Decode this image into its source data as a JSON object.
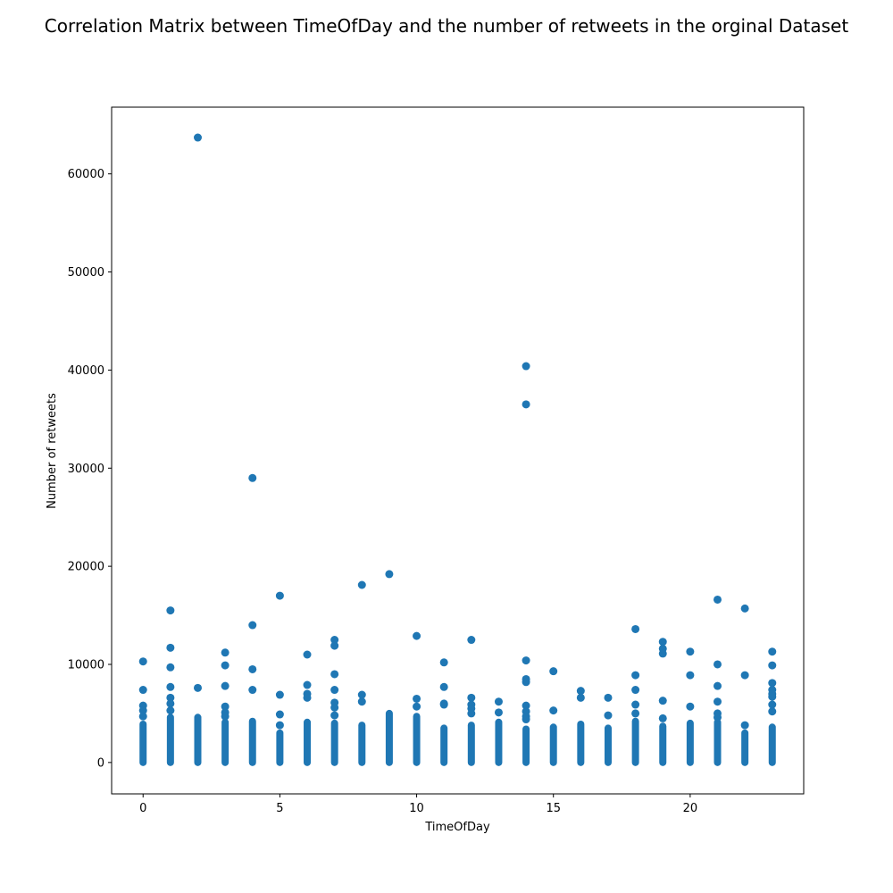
{
  "chart_data": {
    "type": "scatter",
    "title": "Correlation Matrix between TimeOfDay and the number of retweets in the orginal Dataset",
    "xlabel": "TimeOfDay",
    "ylabel": "Number of retweets",
    "xlim": [
      -1.15,
      24.15
    ],
    "ylim": [
      -3200,
      66800
    ],
    "xticks": [
      0,
      5,
      10,
      15,
      20
    ],
    "yticks": [
      0,
      10000,
      20000,
      30000,
      40000,
      50000,
      60000
    ],
    "grid": false,
    "legend": "none",
    "marker_color": "#1f77b4",
    "columns_dense_max": [
      {
        "x": 0,
        "dense_max": 3900
      },
      {
        "x": 1,
        "dense_max": 4600
      },
      {
        "x": 2,
        "dense_max": 4600
      },
      {
        "x": 3,
        "dense_max": 4100
      },
      {
        "x": 4,
        "dense_max": 4200
      },
      {
        "x": 5,
        "dense_max": 3000
      },
      {
        "x": 6,
        "dense_max": 4100
      },
      {
        "x": 7,
        "dense_max": 4000
      },
      {
        "x": 8,
        "dense_max": 3800
      },
      {
        "x": 9,
        "dense_max": 5000
      },
      {
        "x": 10,
        "dense_max": 4700
      },
      {
        "x": 11,
        "dense_max": 3500
      },
      {
        "x": 12,
        "dense_max": 3800
      },
      {
        "x": 13,
        "dense_max": 4100
      },
      {
        "x": 14,
        "dense_max": 3400
      },
      {
        "x": 15,
        "dense_max": 3600
      },
      {
        "x": 16,
        "dense_max": 3900
      },
      {
        "x": 17,
        "dense_max": 3500
      },
      {
        "x": 18,
        "dense_max": 4200
      },
      {
        "x": 19,
        "dense_max": 3700
      },
      {
        "x": 20,
        "dense_max": 4000
      },
      {
        "x": 21,
        "dense_max": 4100
      },
      {
        "x": 22,
        "dense_max": 3000
      },
      {
        "x": 23,
        "dense_max": 3600
      }
    ],
    "points": [
      {
        "x": 0,
        "y": 10300
      },
      {
        "x": 0,
        "y": 7400
      },
      {
        "x": 0,
        "y": 5800
      },
      {
        "x": 0,
        "y": 5300
      },
      {
        "x": 0,
        "y": 4700
      },
      {
        "x": 1,
        "y": 15500
      },
      {
        "x": 1,
        "y": 11700
      },
      {
        "x": 1,
        "y": 9700
      },
      {
        "x": 1,
        "y": 7700
      },
      {
        "x": 1,
        "y": 6600
      },
      {
        "x": 1,
        "y": 6000
      },
      {
        "x": 1,
        "y": 5300
      },
      {
        "x": 2,
        "y": 63700
      },
      {
        "x": 2,
        "y": 7600
      },
      {
        "x": 3,
        "y": 11200
      },
      {
        "x": 3,
        "y": 9900
      },
      {
        "x": 3,
        "y": 7800
      },
      {
        "x": 3,
        "y": 5700
      },
      {
        "x": 3,
        "y": 5100
      },
      {
        "x": 3,
        "y": 4700
      },
      {
        "x": 4,
        "y": 29000
      },
      {
        "x": 4,
        "y": 14000
      },
      {
        "x": 4,
        "y": 9500
      },
      {
        "x": 4,
        "y": 7400
      },
      {
        "x": 5,
        "y": 17000
      },
      {
        "x": 5,
        "y": 6900
      },
      {
        "x": 5,
        "y": 4900
      },
      {
        "x": 5,
        "y": 3800
      },
      {
        "x": 6,
        "y": 11000
      },
      {
        "x": 6,
        "y": 7900
      },
      {
        "x": 6,
        "y": 7000
      },
      {
        "x": 6,
        "y": 6600
      },
      {
        "x": 7,
        "y": 12500
      },
      {
        "x": 7,
        "y": 11900
      },
      {
        "x": 7,
        "y": 9000
      },
      {
        "x": 7,
        "y": 7400
      },
      {
        "x": 7,
        "y": 6100
      },
      {
        "x": 7,
        "y": 5600
      },
      {
        "x": 7,
        "y": 4800
      },
      {
        "x": 8,
        "y": 18100
      },
      {
        "x": 8,
        "y": 6900
      },
      {
        "x": 8,
        "y": 6200
      },
      {
        "x": 9,
        "y": 19200
      },
      {
        "x": 10,
        "y": 12900
      },
      {
        "x": 10,
        "y": 6500
      },
      {
        "x": 10,
        "y": 5700
      },
      {
        "x": 11,
        "y": 10200
      },
      {
        "x": 11,
        "y": 7700
      },
      {
        "x": 11,
        "y": 6000
      },
      {
        "x": 11,
        "y": 5900
      },
      {
        "x": 12,
        "y": 12500
      },
      {
        "x": 12,
        "y": 6600
      },
      {
        "x": 12,
        "y": 5900
      },
      {
        "x": 12,
        "y": 5500
      },
      {
        "x": 12,
        "y": 5000
      },
      {
        "x": 13,
        "y": 6200
      },
      {
        "x": 13,
        "y": 5100
      },
      {
        "x": 14,
        "y": 40400
      },
      {
        "x": 14,
        "y": 36500
      },
      {
        "x": 14,
        "y": 10400
      },
      {
        "x": 14,
        "y": 8500
      },
      {
        "x": 14,
        "y": 8200
      },
      {
        "x": 14,
        "y": 5800
      },
      {
        "x": 14,
        "y": 5200
      },
      {
        "x": 14,
        "y": 4700
      },
      {
        "x": 14,
        "y": 4400
      },
      {
        "x": 15,
        "y": 9300
      },
      {
        "x": 15,
        "y": 5300
      },
      {
        "x": 16,
        "y": 7300
      },
      {
        "x": 16,
        "y": 6600
      },
      {
        "x": 17,
        "y": 6600
      },
      {
        "x": 17,
        "y": 4800
      },
      {
        "x": 18,
        "y": 13600
      },
      {
        "x": 18,
        "y": 8900
      },
      {
        "x": 18,
        "y": 7400
      },
      {
        "x": 18,
        "y": 5900
      },
      {
        "x": 18,
        "y": 5000
      },
      {
        "x": 19,
        "y": 12300
      },
      {
        "x": 19,
        "y": 11600
      },
      {
        "x": 19,
        "y": 11100
      },
      {
        "x": 19,
        "y": 6300
      },
      {
        "x": 19,
        "y": 4500
      },
      {
        "x": 20,
        "y": 11300
      },
      {
        "x": 20,
        "y": 8900
      },
      {
        "x": 20,
        "y": 5700
      },
      {
        "x": 21,
        "y": 16600
      },
      {
        "x": 21,
        "y": 10000
      },
      {
        "x": 21,
        "y": 7800
      },
      {
        "x": 21,
        "y": 6200
      },
      {
        "x": 21,
        "y": 5000
      },
      {
        "x": 21,
        "y": 4600
      },
      {
        "x": 22,
        "y": 15700
      },
      {
        "x": 22,
        "y": 8900
      },
      {
        "x": 22,
        "y": 3800
      },
      {
        "x": 23,
        "y": 11300
      },
      {
        "x": 23,
        "y": 9900
      },
      {
        "x": 23,
        "y": 8100
      },
      {
        "x": 23,
        "y": 7400
      },
      {
        "x": 23,
        "y": 7000
      },
      {
        "x": 23,
        "y": 6700
      },
      {
        "x": 23,
        "y": 5900
      },
      {
        "x": 23,
        "y": 5200
      }
    ]
  }
}
